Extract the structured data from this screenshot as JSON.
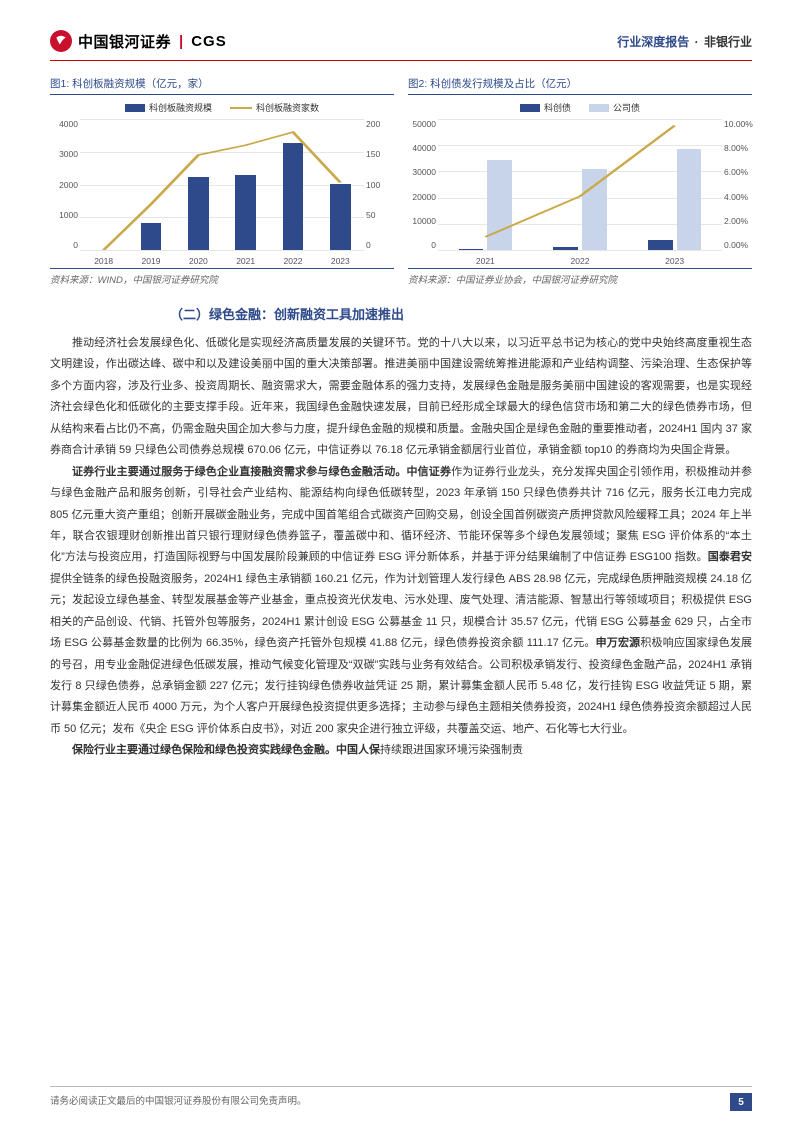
{
  "header": {
    "logo_cn": "中国银河证券",
    "logo_en": "CGS",
    "right_kind": "行业深度报告",
    "right_sep": "·",
    "right_cat": "非银行业"
  },
  "chart1": {
    "title": "图1: 科创板融资规模（亿元，家）",
    "type": "bar+line",
    "categories": [
      "2018",
      "2019",
      "2020",
      "2021",
      "2022",
      "2023"
    ],
    "bar_legend": "科创板融资规模",
    "line_legend": "科创板融资家数",
    "bar_values": [
      0,
      820,
      2230,
      2300,
      3280,
      2030
    ],
    "line_values": [
      0,
      70,
      145,
      160,
      180,
      103
    ],
    "y_left": {
      "min": 0,
      "max": 4000,
      "ticks": [
        4000,
        3000,
        2000,
        1000,
        0
      ]
    },
    "y_right": {
      "min": 0,
      "max": 200,
      "ticks": [
        200,
        150,
        100,
        50,
        0
      ]
    },
    "bar_color": "#2e4a8a",
    "line_color": "#c9a94a",
    "grid_color": "#e6e6e6",
    "source": "资料来源：WIND，中国银河证券研究院"
  },
  "chart2": {
    "title": "图2: 科创债发行规模及占比（亿元）",
    "type": "grouped-bar+line",
    "categories": [
      "2021",
      "2022",
      "2023"
    ],
    "series_a_legend": "科创债",
    "series_b_legend": "公司债",
    "series_a_values": [
      370,
      1300,
      4000
    ],
    "series_b_values": [
      34500,
      31000,
      38500
    ],
    "line_values": [
      1.0,
      4.1,
      9.5
    ],
    "y_left": {
      "min": 0,
      "max": 50000,
      "ticks": [
        50000,
        40000,
        30000,
        20000,
        10000,
        0
      ]
    },
    "y_right": {
      "min": 0,
      "max": 10,
      "ticks": [
        "10.00%",
        "8.00%",
        "6.00%",
        "4.00%",
        "2.00%",
        "0.00%"
      ]
    },
    "series_a_color": "#2e4a8a",
    "series_b_color": "#c8d4ea",
    "line_color": "#c9a94a",
    "grid_color": "#e6e6e6",
    "source": "资料来源：中国证券业协会，中国银河证券研究院"
  },
  "section": {
    "heading": "（二）绿色金融：创新融资工具加速推出",
    "para1_a": "推动经济社会发展绿色化、低碳化是实现经济高质量发展的关键环节。党的十八大以来，以习近平总书记为核心的党中央始终高度重视生态文明建设，作出碳达峰、碳中和以及建设美丽中国的重大决策部署。推进美丽中国建设需统筹推进能源和产业结构调整、污染治理、生态保护等多个方面内容，涉及行业多、投资周期长、融资需求大，需要金融体系的强力支持，发展绿色金融是服务美丽中国建设的客观需要，也是实现经济社会绿色化和低碳化的主要支撑手段。近年来，我国绿色金融快速发展，目前已经形成全球最大的绿色信贷市场和第二大的绿色债券市场，但从结构来看占比仍不高，仍需金融央国企加大参与力度，提升绿色金融的规模和质量。金融央国企是绿色金融的重要推动者，2024H1 国内 37 家券商合计承销 59 只绿色公司债券总规模 670.06 亿元，中信证券以 76.18 亿元承销金额居行业首位，承销金额 top10 的券商均为央国企背景。",
    "para2_lead": "证券行业主要通过服务于绿色企业直接融资需求参与绿色金融活动。中信证券",
    "para2_a": "作为证券行业龙头，充分发挥央国企引领作用，积极推动并参与绿色金融产品和服务创新，引导社会产业结构、能源结构向绿色低碳转型，2023 年承销 150 只绿色债券共计 716 亿元，服务长江电力完成 805 亿元重大资产重组；创新开展碳金融业务，完成中国首笔组合式碳资产回购交易，创设全国首例碳资产质押贷款风险缓释工具；2024 年上半年，联合农银理财创新推出首只银行理财绿色债券篮子，覆盖碳中和、循环经济、节能环保等多个绿色发展领域；聚焦 ESG 评价体系的“本土化”方法与投资应用，打造国际视野与中国发展阶段兼顾的中信证券 ESG 评分新体系，并基于评分结果编制了中信证券 ESG100 指数。",
    "para2_guotai": "国泰君安",
    "para2_b": "提供全链条的绿色投融资服务，2024H1 绿色主承销额 160.21 亿元，作为计划管理人发行绿色 ABS 28.98 亿元，完成绿色质押融资规模 24.18 亿元；发起设立绿色基金、转型发展基金等产业基金，重点投资光伏发电、污水处理、废气处理、清洁能源、智慧出行等领域项目；积极提供 ESG 相关的产品创设、代销、托管外包等服务，2024H1 累计创设 ESG 公募基金 11 只，规模合计 35.57 亿元，代销 ESG 公募基金 629 只，占全市场 ESG 公募基金数量的比例为 66.35%，绿色资产托管外包规模 41.88 亿元，绿色债券投资余额 111.17 亿元。",
    "para2_shenwan": "申万宏源",
    "para2_c": "积极响应国家绿色发展的号召，用专业金融促进绿色低碳发展，推动气候变化管理及“双碳”实践与业务有效结合。公司积极承销发行、投资绿色金融产品，2024H1 承销发行 8 只绿色债券，总承销金额 227 亿元；发行挂钩绿色债券收益凭证 25 期，累计募集金额人民币 5.48 亿，发行挂钩 ESG 收益凭证 5 期，累计募集金额近人民币 4000 万元，为个人客户开展绿色投资提供更多选择；主动参与绿色主题相关债券投资，2024H1 绿色债券投资余额超过人民币 50 亿元；发布《央企 ESG 评价体系白皮书》，对近 200 家央企进行独立评级，共覆盖交运、地产、石化等七大行业。",
    "para3_lead": "保险行业主要通过绿色保险和绿色投资实践绿色金融。中国人保",
    "para3_a": "持续跟进国家环境污染强制责"
  },
  "footer": {
    "disclaimer": "请务必阅读正文最后的中国银河证券股份有限公司免责声明。",
    "page": "5"
  }
}
